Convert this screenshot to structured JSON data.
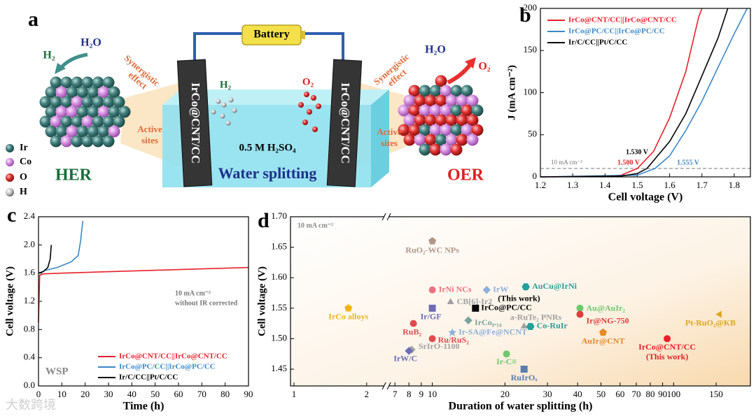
{
  "panel_labels": [
    "a",
    "b",
    "c",
    "d"
  ],
  "watermark": "大数跨境",
  "schematic": {
    "battery": "Battery",
    "electrodes": [
      "IrCo@CNT/CC",
      "IrCo@CNT/CC"
    ],
    "electrolyte": "0.5 M H₂SO₄",
    "process": "Water splitting",
    "cell_products": [
      "H₂",
      "O₂"
    ],
    "her": {
      "title": "HER",
      "reactant": "H₂O",
      "product": "H₂",
      "effect": [
        "Synergistic",
        "effect"
      ],
      "sites": [
        "Active",
        "sites"
      ]
    },
    "oer": {
      "title": "OER",
      "reactant": "H₂O",
      "product": "O₂",
      "effect": [
        "Synergistic",
        "effect"
      ],
      "sites": [
        "Active",
        "sites"
      ]
    },
    "legend": [
      "Ir",
      "Co",
      "O",
      "H"
    ]
  },
  "chart_data": [
    {
      "type": "line",
      "xlabel": "Cell voltage (V)",
      "ylabel": "J (mA cm⁻²)",
      "xlim": [
        1.2,
        1.85
      ],
      "ylim": [
        0,
        200
      ],
      "xticks": [
        1.2,
        1.3,
        1.4,
        1.5,
        1.6,
        1.7,
        1.8
      ],
      "yticks": [
        0,
        50,
        100,
        150,
        200
      ],
      "legend": "upper left",
      "series": [
        {
          "name": "IrCo@CNT/CC||IrCo@CNT/CC",
          "color": "#e8202a",
          "x": [
            1.2,
            1.4,
            1.45,
            1.5,
            1.55,
            1.6,
            1.65,
            1.69,
            1.7
          ],
          "values": [
            0,
            0.5,
            2,
            10,
            30,
            70,
            125,
            190,
            200
          ]
        },
        {
          "name": "IrCo@PC/CC||IrCo@PC/CC",
          "color": "#3a88c8",
          "x": [
            1.2,
            1.5,
            1.555,
            1.6,
            1.65,
            1.7,
            1.75,
            1.8,
            1.84
          ],
          "values": [
            0,
            2,
            10,
            25,
            55,
            90,
            130,
            170,
            200
          ]
        },
        {
          "name": "Ir/C/CC||Pt/C/CC",
          "color": "#000000",
          "x": [
            1.2,
            1.45,
            1.5,
            1.53,
            1.6,
            1.65,
            1.7,
            1.75,
            1.78
          ],
          "values": [
            0,
            1,
            4,
            10,
            42,
            75,
            120,
            165,
            200
          ]
        }
      ],
      "reference_line": {
        "value": 10,
        "label": "10 mA cm⁻²"
      },
      "annotations": [
        {
          "text": "1.530 V",
          "color": "#000000"
        },
        {
          "text": "1.500 V",
          "color": "#e8202a"
        },
        {
          "text": "1.555 V",
          "color": "#3a88c8"
        }
      ]
    },
    {
      "type": "line",
      "xlabel": "Time (h)",
      "ylabel": "Cell voltage (V)",
      "xlim": [
        0,
        90
      ],
      "ylim": [
        0,
        2.4
      ],
      "xticks": [
        0,
        10,
        20,
        30,
        40,
        50,
        60,
        70,
        80,
        90
      ],
      "yticks": [
        {
          "value": 0,
          "label": "0.0"
        },
        0.4,
        0.8,
        1.2,
        1.6,
        {
          "value": 2,
          "label": "2.0"
        },
        2.4
      ],
      "legend": "lower right",
      "series": [
        {
          "name": "IrCo@CNT/CC||IrCo@CNT/CC",
          "color": "#e8202a",
          "x": [
            0,
            0.5,
            2,
            10,
            30,
            60,
            90
          ],
          "values": [
            0.9,
            1.57,
            1.59,
            1.6,
            1.62,
            1.65,
            1.68
          ]
        },
        {
          "name": "IrCo@PC/CC||IrCo@PC/CC",
          "color": "#3a88c8",
          "x": [
            0,
            3,
            8,
            14,
            17,
            18,
            19
          ],
          "values": [
            1.6,
            1.64,
            1.68,
            1.76,
            1.85,
            2.05,
            2.34
          ]
        },
        {
          "name": "Ir/C/CC||Pt/C/CC",
          "color": "#000000",
          "x": [
            0,
            2,
            4,
            5,
            5.5
          ],
          "values": [
            1.6,
            1.62,
            1.68,
            1.8,
            2.0
          ]
        }
      ],
      "annotations": [
        {
          "text": "10 mA cm⁻²",
          "color": "#777777"
        },
        {
          "text": "without IR corrected",
          "color": "#777777"
        },
        {
          "text": "WSP",
          "color": "#888888"
        }
      ]
    },
    {
      "type": "scatter",
      "xlabel": "Duration of water splitting (h)",
      "ylabel": "Cell voltage (V)",
      "xscale": "log",
      "x_break": [
        2.4,
        6.5
      ],
      "xlim": [
        0.967,
        208
      ],
      "ylim": [
        1.4225,
        1.7
      ],
      "xticks": [
        1,
        2,
        7,
        8,
        9,
        10,
        20,
        30,
        40,
        50,
        60,
        70,
        80,
        90,
        100,
        150
      ],
      "yticks": [
        1.45,
        {
          "value": 1.5,
          "label": "1.50"
        },
        1.55,
        {
          "value": 1.6,
          "label": "1.60"
        },
        1.65,
        {
          "value": 1.7,
          "label": "1.70"
        }
      ],
      "annotations": [
        {
          "text": "10 mA cm⁻²",
          "color": "#888888"
        }
      ],
      "series": [
        {
          "name": "RuO₂-WC NPs",
          "color": "#b0978a",
          "marker": "pentagon",
          "x": [
            10
          ],
          "values": [
            1.66
          ]
        },
        {
          "name": "IrCo alloys",
          "color": "#f0b418",
          "marker": "pentagon",
          "x": [
            1.68
          ],
          "values": [
            1.55
          ]
        },
        {
          "name": "IrNi NCs",
          "color": "#ef7080",
          "marker": "circle",
          "x": [
            10
          ],
          "values": [
            1.58
          ]
        },
        {
          "name": "IrW",
          "color": "#8cb0da",
          "marker": "diamond",
          "x": [
            16.8
          ],
          "values": [
            1.58
          ]
        },
        {
          "name": "AuCu@IrNi",
          "color": "#23a09a",
          "marker": "hexagon",
          "x": [
            24.4
          ],
          "values": [
            1.585
          ]
        },
        {
          "name": "CB[6]-Ir2",
          "color": "#a0a0a0",
          "marker": "triangle",
          "x": [
            11.9
          ],
          "values": [
            1.56
          ]
        },
        {
          "name": "Ir/GF",
          "color": "#6a6cb5",
          "marker": "square",
          "x": [
            10
          ],
          "values": [
            1.55
          ]
        },
        {
          "name": "IrCo@PC/CC",
          "note": "(This work)",
          "color": "#000000",
          "marker": "square",
          "x": [
            15.1
          ],
          "values": [
            1.55
          ]
        },
        {
          "name": "a-RuTe₂ PNRs",
          "color": "#a0a0a0",
          "marker": "triangle",
          "x": [
            24
          ],
          "values": [
            1.52
          ]
        },
        {
          "name": "Au@AuIr₂",
          "color": "#6cc86c",
          "marker": "circle",
          "x": [
            40.9
          ],
          "values": [
            1.55
          ]
        },
        {
          "name": "Ir@NG-750",
          "color": "#e03c3c",
          "marker": "circle",
          "x": [
            40.9
          ],
          "values": [
            1.54
          ]
        },
        {
          "name": "IrCo₀.₁₄",
          "color": "#7aa39e",
          "marker": "diamond",
          "x": [
            14.1
          ],
          "values": [
            1.53
          ]
        },
        {
          "name": "RuB₂",
          "color": "#e04c4c",
          "marker": "circle",
          "x": [
            8.35
          ],
          "values": [
            1.525
          ]
        },
        {
          "name": "Co-RuIr",
          "color": "#23a09a",
          "marker": "hexagon",
          "x": [
            25.5
          ],
          "values": [
            1.52
          ]
        },
        {
          "name": "Pt-RuO₂@KB",
          "color": "#dca820",
          "marker": "triangle-left",
          "x": [
            155
          ],
          "values": [
            1.54
          ]
        },
        {
          "name": "AuIr@CNT",
          "color": "#e08a28",
          "marker": "pentagon",
          "x": [
            51
          ],
          "values": [
            1.51
          ]
        },
        {
          "name": "Ir-SA@Fe@NCNT",
          "color": "#8cb0da",
          "marker": "star",
          "x": [
            12.1
          ],
          "values": [
            1.51
          ]
        },
        {
          "name": "Ru/RuS₂",
          "color": "#e04c4c",
          "marker": "circle",
          "x": [
            10
          ],
          "values": [
            1.5
          ]
        },
        {
          "name": "IrCo@CNT/CC",
          "note": "(This work)",
          "color": "#e8202a",
          "marker": "circle",
          "x": [
            94
          ],
          "values": [
            1.5
          ]
        },
        {
          "name": "SrIrO-1100",
          "color": "#a0a0a0",
          "marker": "diamond",
          "x": [
            8.2
          ],
          "values": [
            1.482
          ]
        },
        {
          "name": "IrW/C",
          "color": "#6a6cb5",
          "marker": "diamond",
          "x": [
            8
          ],
          "values": [
            1.48
          ]
        },
        {
          "name": "Ir-C≡",
          "color": "#6cc86c",
          "marker": "circle",
          "x": [
            20.3
          ],
          "values": [
            1.475
          ]
        },
        {
          "name": "RuIrOₓ",
          "color": "#5a7cae",
          "marker": "square",
          "x": [
            24
          ],
          "values": [
            1.45
          ]
        }
      ]
    }
  ]
}
